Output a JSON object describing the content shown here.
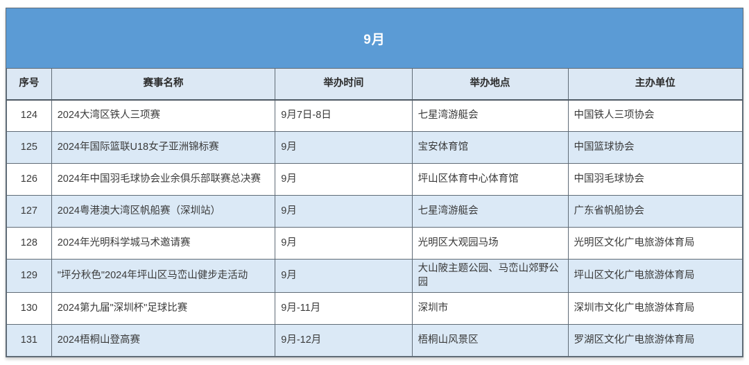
{
  "table": {
    "title": "9月",
    "columns": {
      "no": "序号",
      "name": "赛事名称",
      "time": "举办时间",
      "venue": "举办地点",
      "organizer": "主办单位"
    },
    "rows": [
      {
        "no": "124",
        "name": "2024大湾区铁人三项赛",
        "time": "9月7日-8日",
        "venue": "七星湾游艇会",
        "organizer": "中国铁人三项协会"
      },
      {
        "no": "125",
        "name": "2024年国际篮联U18女子亚洲锦标赛",
        "time": "9月",
        "venue": "宝安体育馆",
        "organizer": "中国篮球协会"
      },
      {
        "no": "126",
        "name": "2024年中国羽毛球协会业余俱乐部联赛总决赛",
        "time": "9月",
        "venue": "坪山区体育中心体育馆",
        "organizer": "中国羽毛球协会"
      },
      {
        "no": "127",
        "name": "2024粤港澳大湾区帆船赛（深圳站）",
        "time": "9月",
        "venue": "七星湾游艇会",
        "organizer": "广东省帆船协会"
      },
      {
        "no": "128",
        "name": "2024年光明科学城马术邀请赛",
        "time": "9月",
        "venue": "光明区大观园马场",
        "organizer": "光明区文化广电旅游体育局"
      },
      {
        "no": "129",
        "name": "\"坪分秋色\"2024年坪山区马峦山健步走活动",
        "time": "9月",
        "venue": "大山陂主题公园、马峦山郊野公园",
        "organizer": "坪山区文化广电旅游体育局"
      },
      {
        "no": "130",
        "name": "2024第九届\"深圳杯\"足球比赛",
        "time": "9月-11月",
        "venue": "深圳市",
        "organizer": "深圳市文化广电旅游体育局"
      },
      {
        "no": "131",
        "name": "2024梧桐山登高赛",
        "time": "9月-12月",
        "venue": "梧桐山风景区",
        "organizer": "罗湖区文化广电旅游体育局"
      }
    ]
  },
  "colors": {
    "title_bg": "#5b9bd5",
    "header_bg": "#dce8f4",
    "row_bg": "#ffffff",
    "row_alt_bg": "#dbe9f6",
    "border": "#5f6b76",
    "text": "#3a3a3a"
  }
}
